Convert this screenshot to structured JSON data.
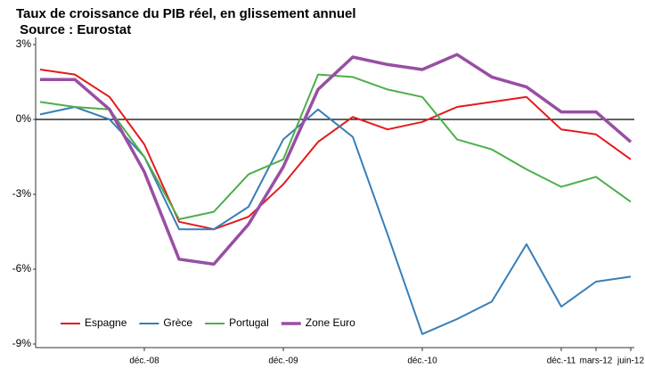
{
  "chart_data": {
    "type": "line",
    "title": "Taux de croissance du PIB réel, en glissement annuel",
    "subtitle": " Source : Eurostat",
    "categories": [
      null,
      null,
      null,
      "déc.-08",
      null,
      null,
      null,
      "déc.-09",
      null,
      null,
      null,
      "déc.-10",
      null,
      null,
      null,
      "déc.-11",
      "mars-12",
      "juin-12"
    ],
    "series": [
      {
        "name": "Espagne",
        "color": "#e41a1c",
        "values": [
          2.0,
          1.8,
          0.9,
          -1.0,
          -4.1,
          -4.4,
          -3.9,
          -2.6,
          -0.9,
          0.1,
          -0.4,
          -0.1,
          0.5,
          0.7,
          0.9,
          -0.4,
          -0.6,
          -1.6
        ]
      },
      {
        "name": "Grèce",
        "color": "#377eb8",
        "values": [
          0.2,
          0.5,
          0.0,
          -1.5,
          -4.4,
          -4.4,
          -3.5,
          -0.8,
          0.4,
          -0.7,
          -4.6,
          -8.6,
          -8.0,
          -7.3,
          -5.0,
          -7.5,
          -6.5,
          -6.3
        ]
      },
      {
        "name": "Portugal",
        "color": "#4daf4a",
        "values": [
          0.7,
          0.5,
          0.4,
          -1.5,
          -4.0,
          -3.7,
          -2.2,
          -1.6,
          1.8,
          1.7,
          1.2,
          0.9,
          -0.8,
          -1.2,
          -2.0,
          -2.7,
          -2.3,
          -3.3
        ]
      },
      {
        "name": "Zone Euro",
        "color": "#984ea3",
        "values": [
          1.6,
          1.6,
          0.4,
          -2.1,
          -5.6,
          -5.8,
          -4.2,
          -1.9,
          1.2,
          2.5,
          2.2,
          2.0,
          2.6,
          1.7,
          1.3,
          0.3,
          0.3,
          -0.9
        ]
      }
    ],
    "ylim": [
      -9,
      3
    ],
    "yticks": [
      {
        "value": 3,
        "label": "3%"
      },
      {
        "value": 0,
        "label": "0%"
      },
      {
        "value": -3,
        "label": "-3%"
      },
      {
        "value": -6,
        "label": "-6%"
      },
      {
        "value": -9,
        "label": "-9%"
      }
    ],
    "grid": false,
    "legend": "lower left"
  }
}
